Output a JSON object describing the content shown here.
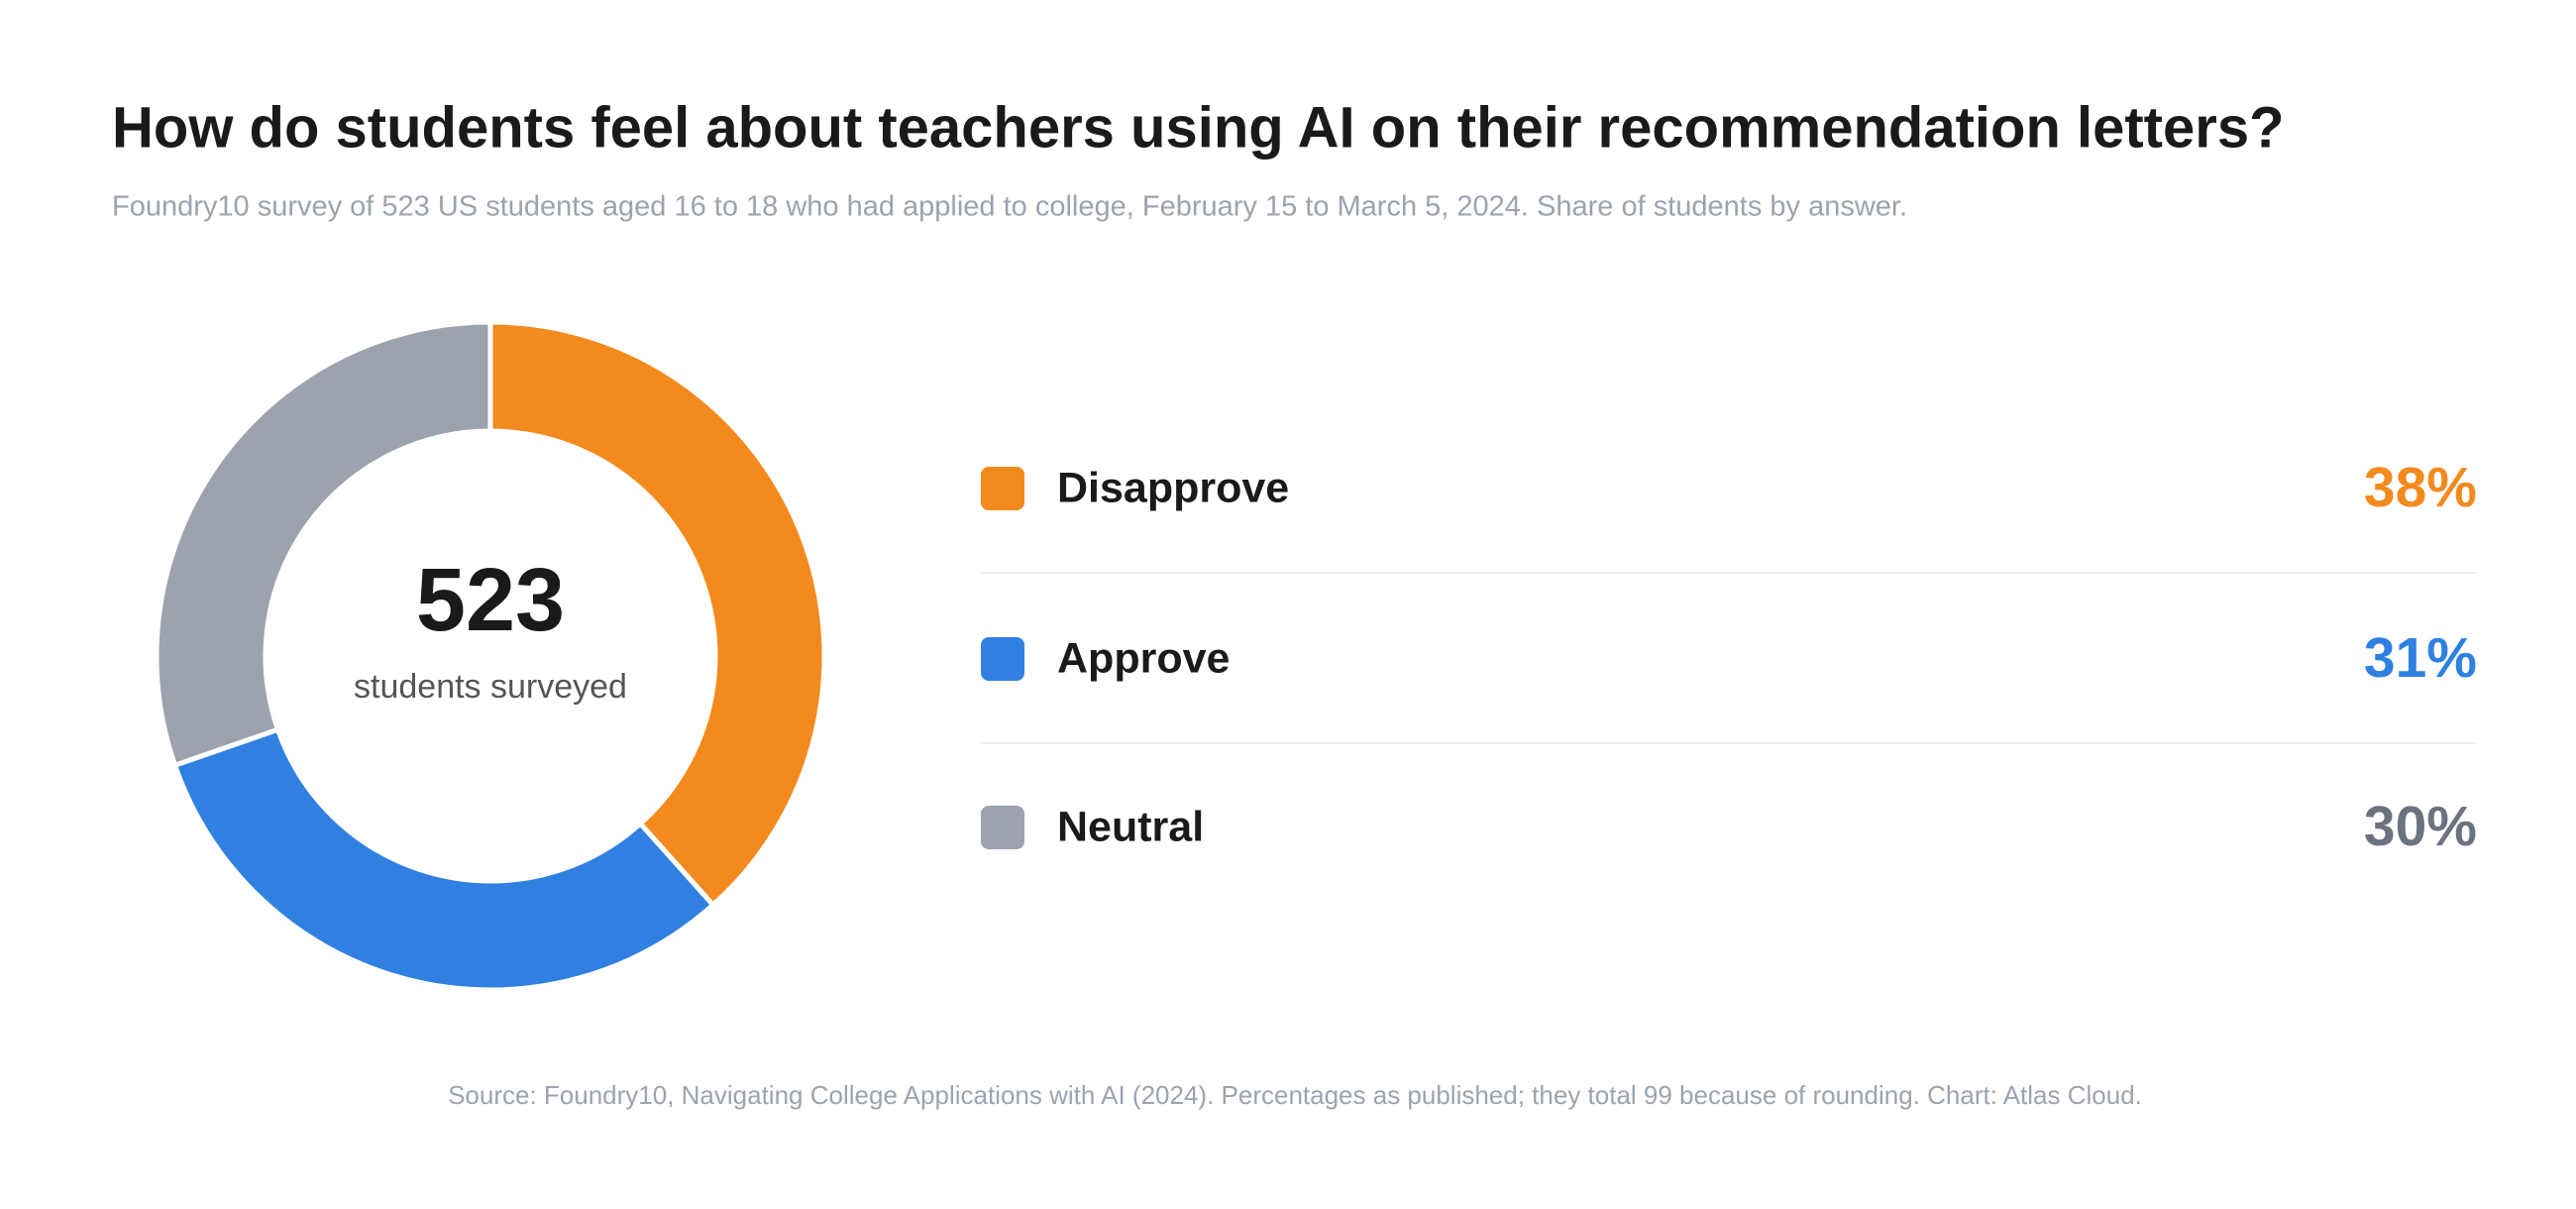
{
  "chart_data": {
    "type": "donut",
    "title": "How do students feel about teachers using AI on their recommendation letters?",
    "subtitle": "Foundry10 survey of 523 US students aged 16 to 18 who had applied to college, February 15 to March 5, 2024. Share of students by answer.",
    "categories": [
      "Disapprove",
      "Approve",
      "Neutral"
    ],
    "values": [
      38,
      31,
      30
    ],
    "value_labels": [
      "38%",
      "31%",
      "30%"
    ],
    "colors": [
      "#f28a1e",
      "#2f80e0",
      "#9ca3af"
    ],
    "value_label_colors": [
      "#f28a1e",
      "#2f80e0",
      "#6b7280"
    ],
    "center_value": 523,
    "center_label": "students surveyed",
    "source": "Source: Foundry10, Navigating College Applications with AI (2024). Percentages as published; they total 99 because of rounding. Chart: Atlas Cloud."
  }
}
